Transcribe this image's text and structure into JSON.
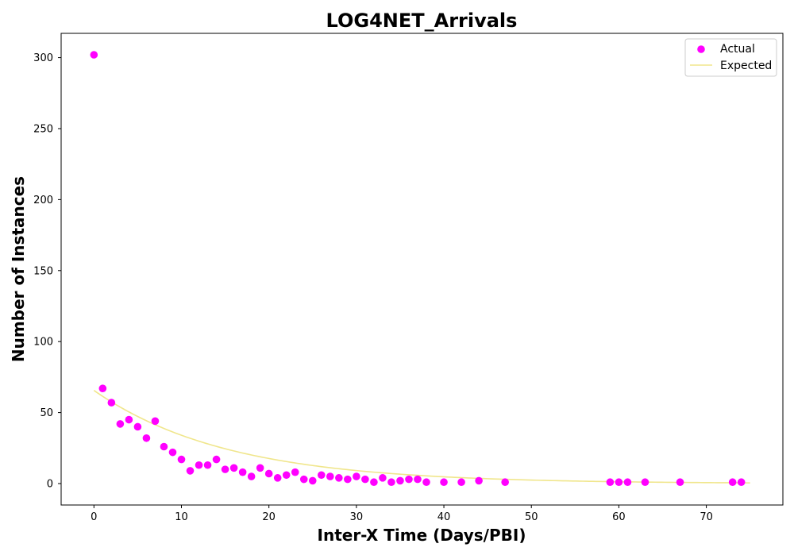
{
  "chart_data": {
    "type": "scatter",
    "title": "LOG4NET_Arrivals",
    "xlabel": "Inter-X Time (Days/PBI)",
    "ylabel": "Number of Instances",
    "xlim": [
      -3.75,
      78.75
    ],
    "ylim": [
      -15.1,
      317.1
    ],
    "xticks": [
      0,
      10,
      20,
      30,
      40,
      50,
      60,
      70
    ],
    "yticks": [
      0,
      50,
      100,
      150,
      200,
      250,
      300
    ],
    "grid": false,
    "legend_position": "top-right",
    "series": [
      {
        "name": "Actual",
        "kind": "scatter",
        "color": "#ff00ff",
        "x": [
          0,
          1,
          2,
          3,
          4,
          5,
          6,
          7,
          8,
          9,
          10,
          11,
          12,
          13,
          14,
          15,
          16,
          17,
          18,
          19,
          20,
          21,
          22,
          23,
          24,
          25,
          26,
          27,
          28,
          29,
          30,
          31,
          32,
          33,
          34,
          35,
          36,
          37,
          38,
          40,
          42,
          44,
          47,
          59,
          60,
          61,
          63,
          67,
          73,
          74
        ],
        "y": [
          302,
          67,
          57,
          42,
          45,
          40,
          32,
          44,
          26,
          22,
          17,
          9,
          13,
          13,
          17,
          10,
          11,
          8,
          5,
          11,
          7,
          4,
          6,
          8,
          3,
          2,
          6,
          5,
          4,
          3,
          5,
          3,
          1,
          4,
          1,
          2,
          3,
          3,
          1,
          1,
          1,
          2,
          1,
          1,
          1,
          1,
          1,
          1,
          1,
          1
        ]
      },
      {
        "name": "Expected",
        "kind": "line",
        "color": "#f0e68c",
        "function": "65.6 * exp(-0.0656 * x)",
        "x_range": [
          0,
          75
        ]
      }
    ]
  }
}
